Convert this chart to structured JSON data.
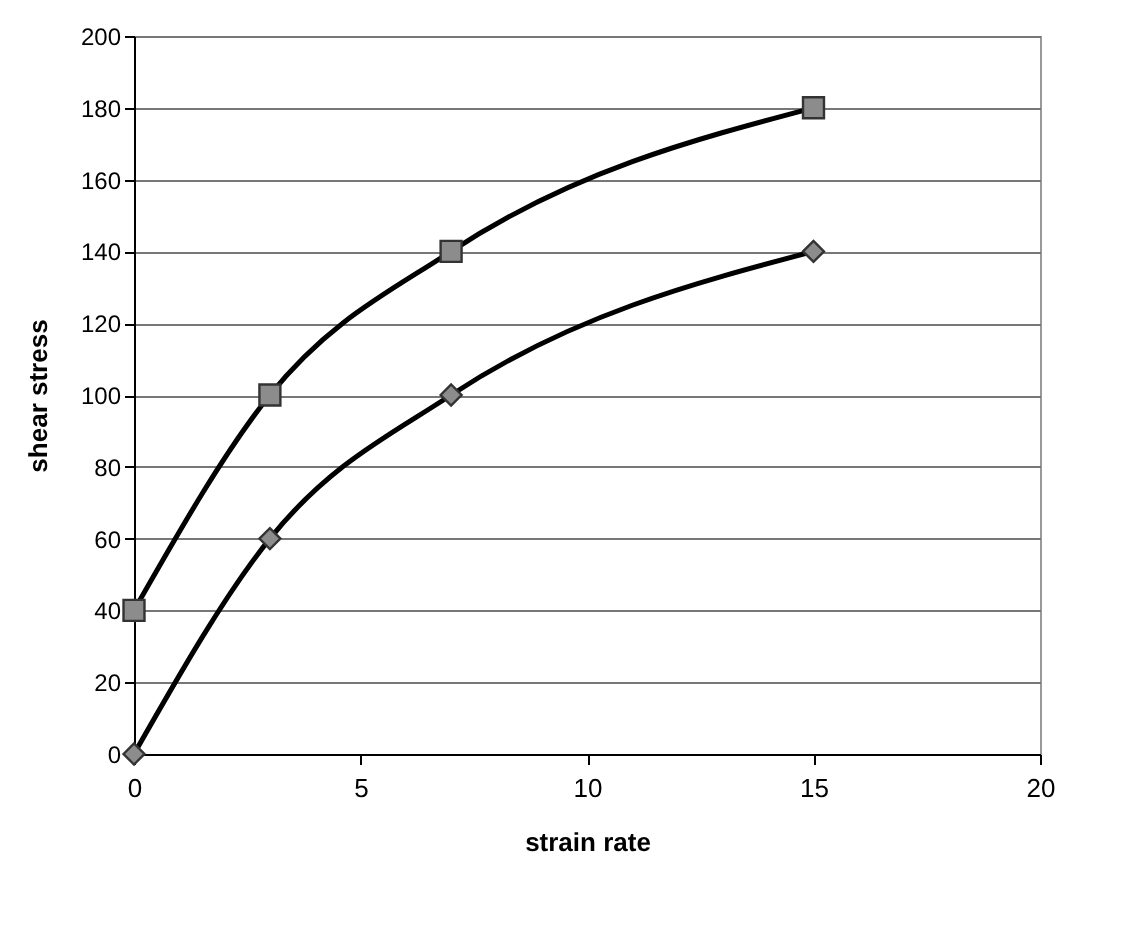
{
  "chart_data": {
    "type": "line",
    "xlabel": "strain    rate",
    "ylabel": "shear    stress",
    "xlim": [
      0,
      20
    ],
    "xticks": [
      0,
      5,
      10,
      15,
      20
    ],
    "ylim": [
      0,
      200
    ],
    "yticks": [
      0,
      20,
      40,
      60,
      80,
      100,
      120,
      140,
      160,
      180,
      200
    ],
    "grid": "y",
    "line_style": "solid",
    "series": [
      {
        "color": "#333333",
        "marker": "square",
        "x": [
          0,
          3,
          7,
          15
        ],
        "values": [
          40,
          100,
          140,
          180
        ]
      },
      {
        "color": "#333333",
        "marker": "diamond",
        "x": [
          0,
          3,
          7,
          15
        ],
        "values": [
          0,
          60,
          100,
          140
        ]
      }
    ]
  }
}
